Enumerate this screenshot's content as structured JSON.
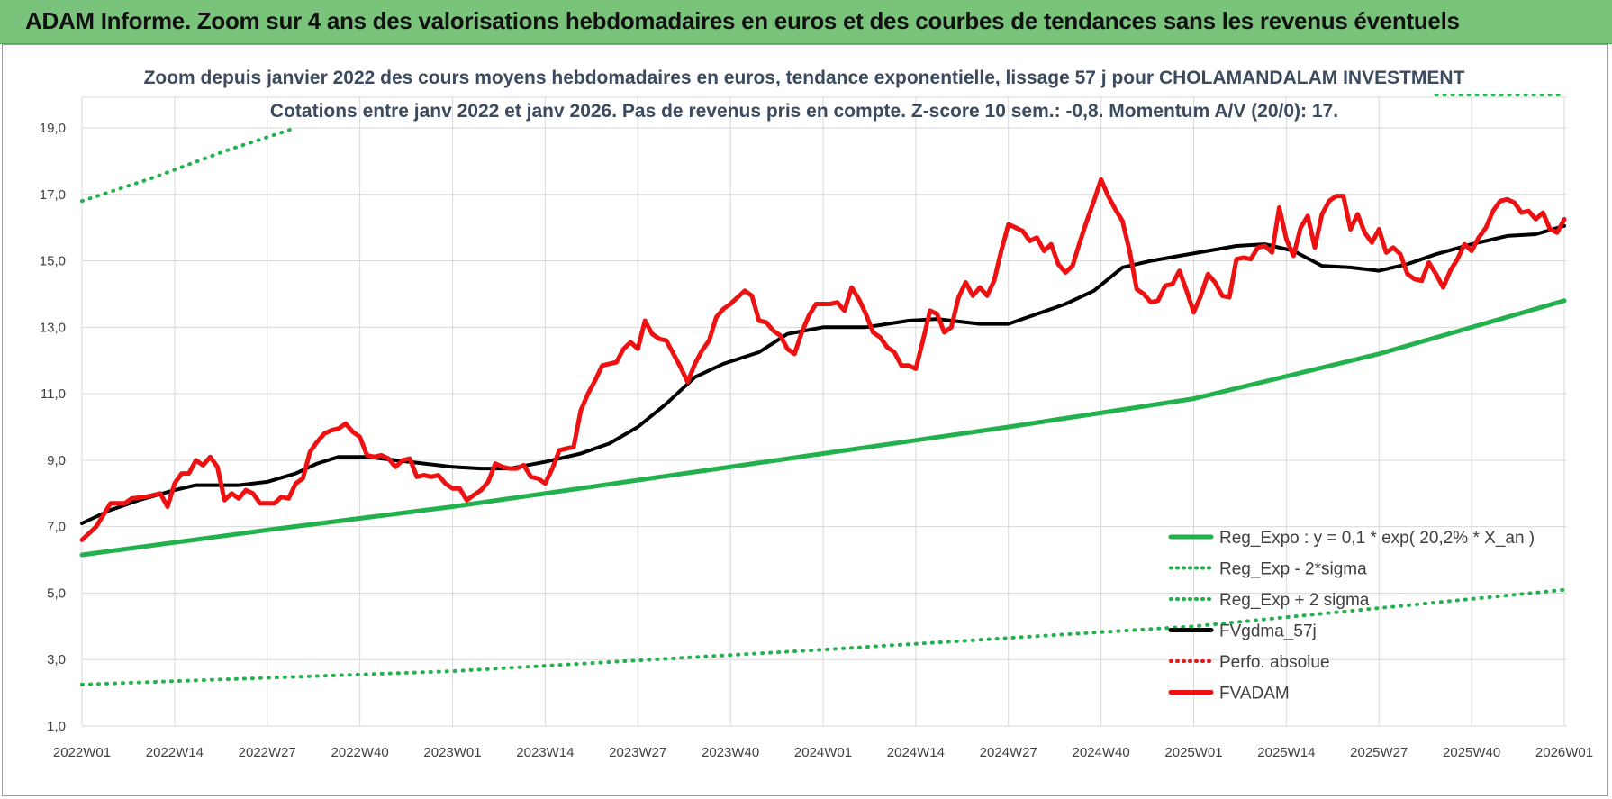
{
  "header": {
    "title": "ADAM Informe. Zoom sur 4 ans des valorisations hebdomadaires en euros et des courbes de tendances sans les revenus éventuels"
  },
  "chart_data": {
    "type": "line",
    "title": "Zoom depuis janvier 2022 des cours moyens hebdomadaires en euros, tendance exponentielle, lissage 57 j pour CHOLAMANDALAM INVESTMENT",
    "subtitle": "Cotations entre janv 2022 et janv 2026. Pas de revenus pris en compte. Z-score 10 sem.: -0,8. Momentum A/V (20/0): 17.",
    "xlabel": "",
    "ylabel": "",
    "x_ticks": [
      "2022W01",
      "2022W14",
      "2022W27",
      "2022W40",
      "2023W01",
      "2023W14",
      "2023W27",
      "2023W40",
      "2024W01",
      "2024W14",
      "2024W27",
      "2024W40",
      "2025W01",
      "2025W14",
      "2025W27",
      "2025W40",
      "2026W01"
    ],
    "y_ticks": [
      "1,0",
      "3,0",
      "5,0",
      "7,0",
      "9,0",
      "11,0",
      "13,0",
      "15,0",
      "17,0",
      "19,0"
    ],
    "ylim": [
      1,
      19
    ],
    "x_range_weeks": [
      0,
      208
    ],
    "grid": true,
    "legend_position": "bottom-right",
    "series": [
      {
        "name": "Reg_Expo : y = 0,1 * exp( 20,2% *  X_an )",
        "style": "solid",
        "color": "#22b14c",
        "width": 5,
        "points": [
          [
            0,
            6.15
          ],
          [
            26,
            6.9
          ],
          [
            52,
            7.6
          ],
          [
            78,
            8.4
          ],
          [
            104,
            9.2
          ],
          [
            130,
            10.0
          ],
          [
            156,
            10.85
          ],
          [
            182,
            12.2
          ],
          [
            208,
            13.8
          ]
        ]
      },
      {
        "name": "Reg_Exp - 2*sigma",
        "style": "dotted",
        "color": "#22b14c",
        "width": 4,
        "points": [
          [
            0,
            2.25
          ],
          [
            52,
            2.65
          ],
          [
            104,
            3.3
          ],
          [
            156,
            4.0
          ],
          [
            208,
            5.1
          ]
        ]
      },
      {
        "name": "Reg_Exp + 2 sigma",
        "style": "dotted",
        "color": "#22b14c",
        "width": 4,
        "points": [
          [
            0,
            16.8
          ],
          [
            10,
            17.5
          ],
          [
            20,
            18.3
          ],
          [
            30,
            19.0
          ]
        ],
        "points_extra": [
          [
            190,
            20.0
          ],
          [
            208,
            20.0
          ]
        ]
      },
      {
        "name": "FVgdma_57j",
        "style": "solid",
        "color": "#000000",
        "width": 4,
        "points": [
          [
            0,
            7.1
          ],
          [
            4,
            7.5
          ],
          [
            8,
            7.8
          ],
          [
            13,
            8.1
          ],
          [
            16,
            8.25
          ],
          [
            22,
            8.25
          ],
          [
            26,
            8.35
          ],
          [
            30,
            8.6
          ],
          [
            33,
            8.9
          ],
          [
            36,
            9.1
          ],
          [
            40,
            9.1
          ],
          [
            44,
            9.0
          ],
          [
            48,
            8.9
          ],
          [
            52,
            8.8
          ],
          [
            56,
            8.75
          ],
          [
            60,
            8.75
          ],
          [
            65,
            8.95
          ],
          [
            70,
            9.2
          ],
          [
            74,
            9.5
          ],
          [
            78,
            10.0
          ],
          [
            82,
            10.7
          ],
          [
            86,
            11.5
          ],
          [
            90,
            11.9
          ],
          [
            95,
            12.25
          ],
          [
            99,
            12.8
          ],
          [
            104,
            13.0
          ],
          [
            110,
            13.0
          ],
          [
            116,
            13.2
          ],
          [
            120,
            13.25
          ],
          [
            126,
            13.1
          ],
          [
            130,
            13.1
          ],
          [
            134,
            13.4
          ],
          [
            138,
            13.7
          ],
          [
            142,
            14.1
          ],
          [
            146,
            14.8
          ],
          [
            150,
            15.0
          ],
          [
            154,
            15.15
          ],
          [
            158,
            15.3
          ],
          [
            162,
            15.45
          ],
          [
            166,
            15.5
          ],
          [
            170,
            15.3
          ],
          [
            174,
            14.85
          ],
          [
            178,
            14.8
          ],
          [
            182,
            14.7
          ],
          [
            186,
            14.9
          ],
          [
            190,
            15.2
          ],
          [
            195,
            15.5
          ],
          [
            200,
            15.75
          ],
          [
            204,
            15.8
          ],
          [
            208,
            16.05
          ]
        ]
      },
      {
        "name": "Perfo. absolue",
        "style": "dotted",
        "color": "#e31b1b",
        "width": 3,
        "points": []
      },
      {
        "name": "FVADAM",
        "style": "solid",
        "color": "#ee1111",
        "width": 5,
        "points": [
          [
            0,
            6.6
          ],
          [
            2,
            7.0
          ],
          [
            4,
            7.7
          ],
          [
            6,
            7.7
          ],
          [
            7,
            7.85
          ],
          [
            9,
            7.9
          ],
          [
            11,
            8.0
          ],
          [
            12,
            7.6
          ],
          [
            13,
            8.3
          ],
          [
            14,
            8.6
          ],
          [
            15,
            8.6
          ],
          [
            16,
            9.0
          ],
          [
            17,
            8.85
          ],
          [
            18,
            9.1
          ],
          [
            19,
            8.8
          ],
          [
            20,
            7.8
          ],
          [
            21,
            8.0
          ],
          [
            22,
            7.85
          ],
          [
            23,
            8.1
          ],
          [
            24,
            8.0
          ],
          [
            25,
            7.7
          ],
          [
            26,
            7.7
          ],
          [
            27,
            7.7
          ],
          [
            28,
            7.9
          ],
          [
            29,
            7.85
          ],
          [
            30,
            8.3
          ],
          [
            31,
            8.45
          ],
          [
            32,
            9.25
          ],
          [
            33,
            9.55
          ],
          [
            34,
            9.8
          ],
          [
            35,
            9.9
          ],
          [
            36,
            9.95
          ],
          [
            37,
            10.1
          ],
          [
            38,
            9.85
          ],
          [
            39,
            9.7
          ],
          [
            40,
            9.15
          ],
          [
            41,
            9.1
          ],
          [
            42,
            9.15
          ],
          [
            43,
            9.05
          ],
          [
            44,
            8.8
          ],
          [
            45,
            9.0
          ],
          [
            46,
            9.05
          ],
          [
            47,
            8.5
          ],
          [
            48,
            8.55
          ],
          [
            49,
            8.5
          ],
          [
            50,
            8.55
          ],
          [
            51,
            8.3
          ],
          [
            52,
            8.15
          ],
          [
            53,
            8.15
          ],
          [
            54,
            7.8
          ],
          [
            55,
            7.95
          ],
          [
            56,
            8.1
          ],
          [
            57,
            8.35
          ],
          [
            58,
            8.9
          ],
          [
            59,
            8.8
          ],
          [
            60,
            8.75
          ],
          [
            61,
            8.75
          ],
          [
            62,
            8.85
          ],
          [
            63,
            8.5
          ],
          [
            64,
            8.45
          ],
          [
            65,
            8.3
          ],
          [
            66,
            8.75
          ],
          [
            67,
            9.3
          ],
          [
            68,
            9.35
          ],
          [
            69,
            9.4
          ],
          [
            70,
            10.5
          ],
          [
            71,
            11.0
          ],
          [
            72,
            11.4
          ],
          [
            73,
            11.85
          ],
          [
            74,
            11.9
          ],
          [
            75,
            11.95
          ],
          [
            76,
            12.35
          ],
          [
            77,
            12.55
          ],
          [
            78,
            12.35
          ],
          [
            79,
            13.2
          ],
          [
            80,
            12.8
          ],
          [
            81,
            12.65
          ],
          [
            82,
            12.6
          ],
          [
            83,
            12.2
          ],
          [
            84,
            11.8
          ],
          [
            85,
            11.35
          ],
          [
            86,
            11.9
          ],
          [
            87,
            12.3
          ],
          [
            88,
            12.6
          ],
          [
            89,
            13.3
          ],
          [
            90,
            13.55
          ],
          [
            91,
            13.7
          ],
          [
            92,
            13.9
          ],
          [
            93,
            14.1
          ],
          [
            94,
            13.95
          ],
          [
            95,
            13.2
          ],
          [
            96,
            13.15
          ],
          [
            97,
            12.9
          ],
          [
            98,
            12.75
          ],
          [
            99,
            12.35
          ],
          [
            100,
            12.2
          ],
          [
            101,
            12.85
          ],
          [
            102,
            13.35
          ],
          [
            103,
            13.7
          ],
          [
            104,
            13.7
          ],
          [
            105,
            13.7
          ],
          [
            106,
            13.75
          ],
          [
            107,
            13.5
          ],
          [
            108,
            14.2
          ],
          [
            109,
            13.85
          ],
          [
            110,
            13.4
          ],
          [
            111,
            12.85
          ],
          [
            112,
            12.7
          ],
          [
            113,
            12.4
          ],
          [
            114,
            12.25
          ],
          [
            115,
            11.85
          ],
          [
            116,
            11.85
          ],
          [
            117,
            11.75
          ],
          [
            118,
            12.6
          ],
          [
            119,
            13.5
          ],
          [
            120,
            13.4
          ],
          [
            121,
            12.85
          ],
          [
            122,
            13.0
          ],
          [
            123,
            13.9
          ],
          [
            124,
            14.35
          ],
          [
            125,
            13.95
          ],
          [
            126,
            14.2
          ],
          [
            127,
            13.95
          ],
          [
            128,
            14.4
          ],
          [
            129,
            15.3
          ],
          [
            130,
            16.1
          ],
          [
            131,
            16.0
          ],
          [
            132,
            15.9
          ],
          [
            133,
            15.6
          ],
          [
            134,
            15.7
          ],
          [
            135,
            15.3
          ],
          [
            136,
            15.5
          ],
          [
            137,
            14.9
          ],
          [
            138,
            14.65
          ],
          [
            139,
            14.85
          ],
          [
            140,
            15.55
          ],
          [
            141,
            16.2
          ],
          [
            142,
            16.8
          ],
          [
            143,
            17.45
          ],
          [
            144,
            16.95
          ],
          [
            145,
            16.55
          ],
          [
            146,
            16.2
          ],
          [
            147,
            15.3
          ],
          [
            148,
            14.15
          ],
          [
            149,
            14.0
          ],
          [
            150,
            13.75
          ],
          [
            151,
            13.8
          ],
          [
            152,
            14.25
          ],
          [
            153,
            14.3
          ],
          [
            154,
            14.7
          ],
          [
            155,
            14.1
          ],
          [
            156,
            13.45
          ],
          [
            157,
            13.95
          ],
          [
            158,
            14.6
          ],
          [
            159,
            14.35
          ],
          [
            160,
            13.95
          ],
          [
            161,
            13.9
          ],
          [
            162,
            15.05
          ],
          [
            163,
            15.1
          ],
          [
            164,
            15.05
          ],
          [
            165,
            15.4
          ],
          [
            166,
            15.45
          ],
          [
            167,
            15.25
          ],
          [
            168,
            16.6
          ],
          [
            169,
            15.65
          ],
          [
            170,
            15.15
          ],
          [
            171,
            16.0
          ],
          [
            172,
            16.35
          ],
          [
            173,
            15.4
          ],
          [
            174,
            16.4
          ],
          [
            175,
            16.8
          ],
          [
            176,
            16.95
          ],
          [
            177,
            16.95
          ],
          [
            178,
            15.95
          ],
          [
            179,
            16.4
          ],
          [
            180,
            15.85
          ],
          [
            181,
            15.55
          ],
          [
            182,
            15.95
          ],
          [
            183,
            15.25
          ],
          [
            184,
            15.4
          ],
          [
            185,
            15.2
          ],
          [
            186,
            14.6
          ],
          [
            187,
            14.45
          ],
          [
            188,
            14.4
          ],
          [
            189,
            14.95
          ],
          [
            190,
            14.6
          ],
          [
            191,
            14.2
          ],
          [
            192,
            14.7
          ],
          [
            193,
            15.05
          ],
          [
            194,
            15.5
          ],
          [
            195,
            15.3
          ],
          [
            196,
            15.7
          ],
          [
            197,
            16.0
          ],
          [
            198,
            16.5
          ],
          [
            199,
            16.8
          ],
          [
            200,
            16.85
          ],
          [
            201,
            16.75
          ],
          [
            202,
            16.45
          ],
          [
            203,
            16.5
          ],
          [
            204,
            16.25
          ],
          [
            205,
            16.45
          ],
          [
            206,
            15.95
          ],
          [
            207,
            15.85
          ],
          [
            208,
            16.25
          ]
        ]
      }
    ],
    "annotations": []
  },
  "colors": {
    "banner_bg": "#79c37b",
    "grid": "#d9d9d9",
    "subtitle_text": "#3b4a5e"
  }
}
